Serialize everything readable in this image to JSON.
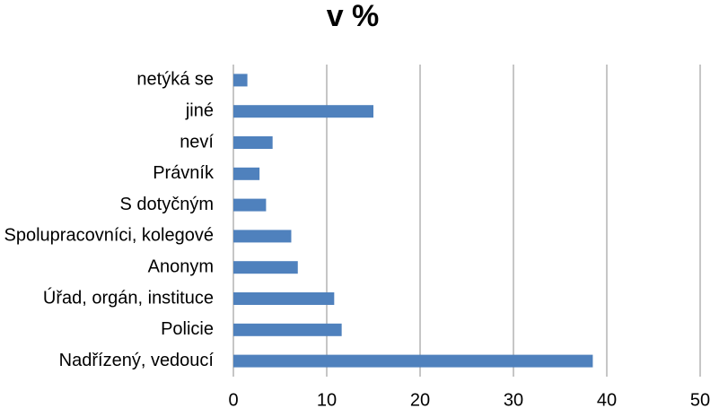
{
  "chart_data": {
    "type": "barh",
    "title": "v %",
    "categories": [
      "netýká se",
      "jiné",
      "neví",
      "Právník",
      "S dotyčným",
      "Spolupracovníci, kolegové",
      "Anonym",
      "Úřad, orgán, instituce",
      "Policie",
      "Nadřízený, vedoucí"
    ],
    "values": [
      1.5,
      15.0,
      4.2,
      2.8,
      3.5,
      6.2,
      6.9,
      10.8,
      11.6,
      38.5
    ],
    "color": "#4f81bd",
    "xlim": [
      0,
      50
    ],
    "xticks": [
      0,
      10,
      20,
      30,
      40,
      50
    ],
    "grid": true
  }
}
